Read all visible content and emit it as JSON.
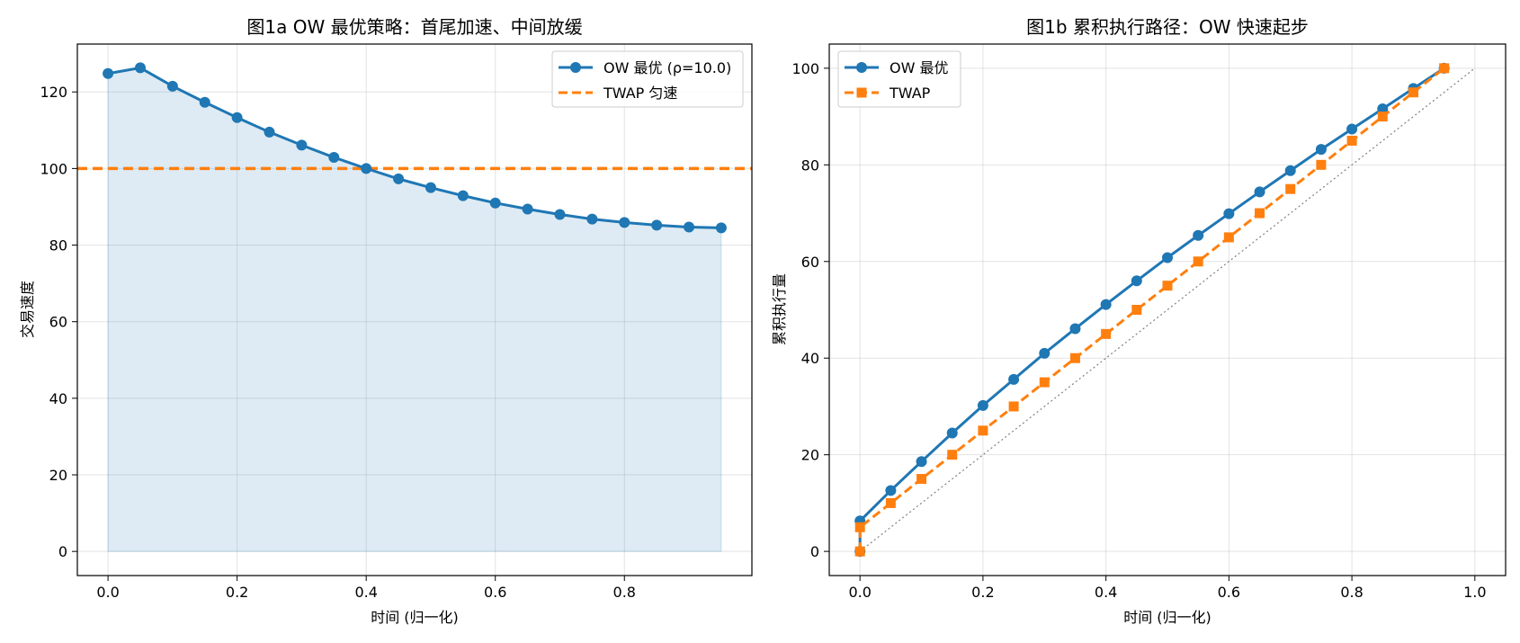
{
  "colors": {
    "ow": "#1f77b4",
    "twap": "#ff7f0e",
    "fill": "#1f77b4",
    "diag": "#808080"
  },
  "chart_data": [
    {
      "type": "line",
      "title": "图1a  OW 最优策略：首尾加速、中间放缓",
      "xlabel": "时间 (归一化)",
      "ylabel": "交易速度",
      "xlim": [
        -0.0475,
        0.9975
      ],
      "ylim": [
        -6.3,
        132.5
      ],
      "xticks": [
        0.0,
        0.2,
        0.4,
        0.6,
        0.8
      ],
      "xtick_labels": [
        "0.0",
        "0.2",
        "0.4",
        "0.6",
        "0.8"
      ],
      "yticks": [
        0,
        20,
        40,
        60,
        80,
        100,
        120
      ],
      "ytick_labels": [
        "0",
        "20",
        "40",
        "60",
        "80",
        "100",
        "120"
      ],
      "grid": true,
      "legend_position": "top-right",
      "x": [
        0.0,
        0.05,
        0.1,
        0.15,
        0.2,
        0.25,
        0.3,
        0.35,
        0.4,
        0.45,
        0.5,
        0.55,
        0.6,
        0.65,
        0.7,
        0.75,
        0.8,
        0.85,
        0.9,
        0.95
      ],
      "series": [
        {
          "name": "OW 最优 (ρ=10.0)",
          "style": "line-marker-circle-filled-area",
          "values": [
            124.8,
            126.3,
            121.5,
            117.3,
            113.3,
            109.5,
            106.1,
            102.9,
            100.0,
            97.3,
            95.0,
            92.9,
            91.0,
            89.4,
            88.0,
            86.8,
            85.9,
            85.2,
            84.7,
            84.5
          ]
        },
        {
          "name": "TWAP 匀速",
          "style": "dashed-horizontal",
          "value": 100
        }
      ]
    },
    {
      "type": "line",
      "title": "图1b  累积执行路径：OW 快速起步",
      "xlabel": "时间 (归一化)",
      "ylabel": "累积执行量",
      "xlim": [
        -0.05,
        1.05
      ],
      "ylim": [
        -5,
        105
      ],
      "xticks": [
        0.0,
        0.2,
        0.4,
        0.6,
        0.8,
        1.0
      ],
      "xtick_labels": [
        "0.0",
        "0.2",
        "0.4",
        "0.6",
        "0.8",
        "1.0"
      ],
      "yticks": [
        0,
        20,
        40,
        60,
        80,
        100
      ],
      "ytick_labels": [
        "0",
        "20",
        "40",
        "60",
        "80",
        "100"
      ],
      "grid": true,
      "legend_position": "top-left",
      "series": [
        {
          "name": "OW 最优",
          "style": "line-marker-circle",
          "x": [
            0.0,
            0.0,
            0.05,
            0.1,
            0.15,
            0.2,
            0.25,
            0.3,
            0.35,
            0.4,
            0.45,
            0.5,
            0.55,
            0.6,
            0.65,
            0.7,
            0.75,
            0.8,
            0.85,
            0.9,
            0.95
          ],
          "values": [
            0,
            6.3,
            12.6,
            18.6,
            24.5,
            30.2,
            35.6,
            41.0,
            46.1,
            51.1,
            56.0,
            60.8,
            65.4,
            69.9,
            74.4,
            78.8,
            83.2,
            87.4,
            91.6,
            95.8,
            100.0
          ]
        },
        {
          "name": "TWAP",
          "style": "dashed-marker-square",
          "x": [
            0.0,
            0.0,
            0.05,
            0.1,
            0.15,
            0.2,
            0.25,
            0.3,
            0.35,
            0.4,
            0.45,
            0.5,
            0.55,
            0.6,
            0.65,
            0.7,
            0.75,
            0.8,
            0.85,
            0.9,
            0.95
          ],
          "values": [
            0,
            5,
            10,
            15,
            20,
            25,
            30,
            35,
            40,
            45,
            50,
            55,
            60,
            65,
            70,
            75,
            80,
            85,
            90,
            95,
            100
          ]
        },
        {
          "style": "dotted-diagonal",
          "x": [
            0.0,
            1.0
          ],
          "values": [
            0,
            100
          ]
        }
      ]
    }
  ]
}
